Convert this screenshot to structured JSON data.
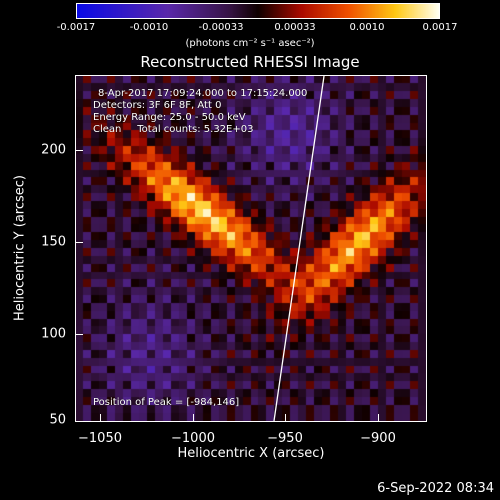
{
  "colorbar": {
    "ticks": [
      "-0.0017",
      "-0.0010",
      "-0.00033",
      "0.00033",
      "0.0010",
      "0.0017"
    ],
    "unit_label": "(photons cm⁻² s⁻¹ asec⁻²)"
  },
  "title": "Reconstructed RHESSI Image",
  "info": {
    "time": "8-Apr-2017 17:09:24.000 to 17:15:24.000",
    "detectors": "Detectors: 3F 6F 8F, Att 0",
    "energy": "Energy Range: 25.0 - 50.0 keV",
    "method": "Clean     Total counts: 5.32E+03",
    "peak": "Position of Peak = [-984,146]"
  },
  "axes": {
    "xlabel": "Heliocentric X (arcsec)",
    "ylabel": "Heliocentric Y (arcsec)",
    "xticks": [
      "−1050",
      "−1000",
      "−950",
      "−900"
    ],
    "yticks": [
      "200",
      "150",
      "100",
      "50"
    ]
  },
  "footer": "6-Sep-2022 08:34"
}
